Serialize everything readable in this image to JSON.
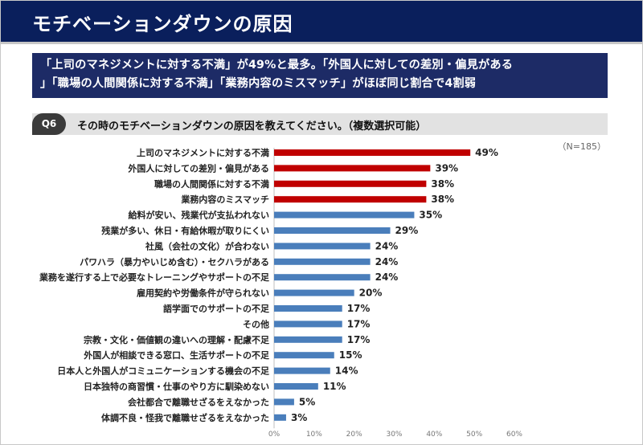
{
  "header": {
    "title": "モチベーションダウンの原因"
  },
  "headline": {
    "line1": "「上司のマネジメントに対する不満」が49%と最多。「外国人に対しての差別・偏見がある",
    "line2": "」「職場の人間関係に対する不満」「業務内容のミスマッチ」がほぼ同じ割合で4割弱"
  },
  "question": {
    "badge": "Q6",
    "text": "その時のモチベーションダウンの原因を教えてください。（複数選択可能）"
  },
  "sample_size": "（N=185）",
  "colors": {
    "header_bg": "#0a1f5c",
    "highlight_bar": "#c00000",
    "normal_bar": "#4a7ebb"
  },
  "chart_data": {
    "type": "bar",
    "orientation": "horizontal",
    "categories": [
      "上司のマネジメントに対する不満",
      "外国人に対しての差別・偏見がある",
      "職場の人間関係に対する不満",
      "業務内容のミスマッチ",
      "給料が安い、残業代が支払われない",
      "残業が多い、休日・有給休暇が取りにくい",
      "社風（会社の文化）が合わない",
      "パワハラ（暴力やいじめ含む）・セクハラがある",
      "業務を遂行する上で必要なトレーニングやサポートの不足",
      "雇用契約や労働条件が守られない",
      "語学面でのサポートの不足",
      "その他",
      "宗教・文化・価値観の違いへの理解・配慮不足",
      "外国人が相談できる窓口、生活サポートの不足",
      "日本人と外国人がコミュニケーションする機会の不足",
      "日本独特の商習慣・仕事のやり方に馴染めない",
      "会社都合で離職せざるをえなかった",
      "体調不良・怪我で離職せざるをえなかった"
    ],
    "values": [
      49,
      39,
      38,
      38,
      35,
      29,
      24,
      24,
      24,
      20,
      17,
      17,
      17,
      15,
      14,
      11,
      5,
      3
    ],
    "value_labels": [
      "49%",
      "39%",
      "38%",
      "38%",
      "35%",
      "29%",
      "24%",
      "24%",
      "24%",
      "20%",
      "17%",
      "17%",
      "17%",
      "15%",
      "14%",
      "11%",
      "5%",
      "3%"
    ],
    "highlighted_count": 4,
    "xlim": [
      0,
      60
    ],
    "ticks": [
      "0%",
      "10%",
      "20%",
      "30%",
      "40%",
      "50%",
      "60%"
    ],
    "grid": false,
    "title": "",
    "xlabel": "",
    "ylabel": ""
  }
}
